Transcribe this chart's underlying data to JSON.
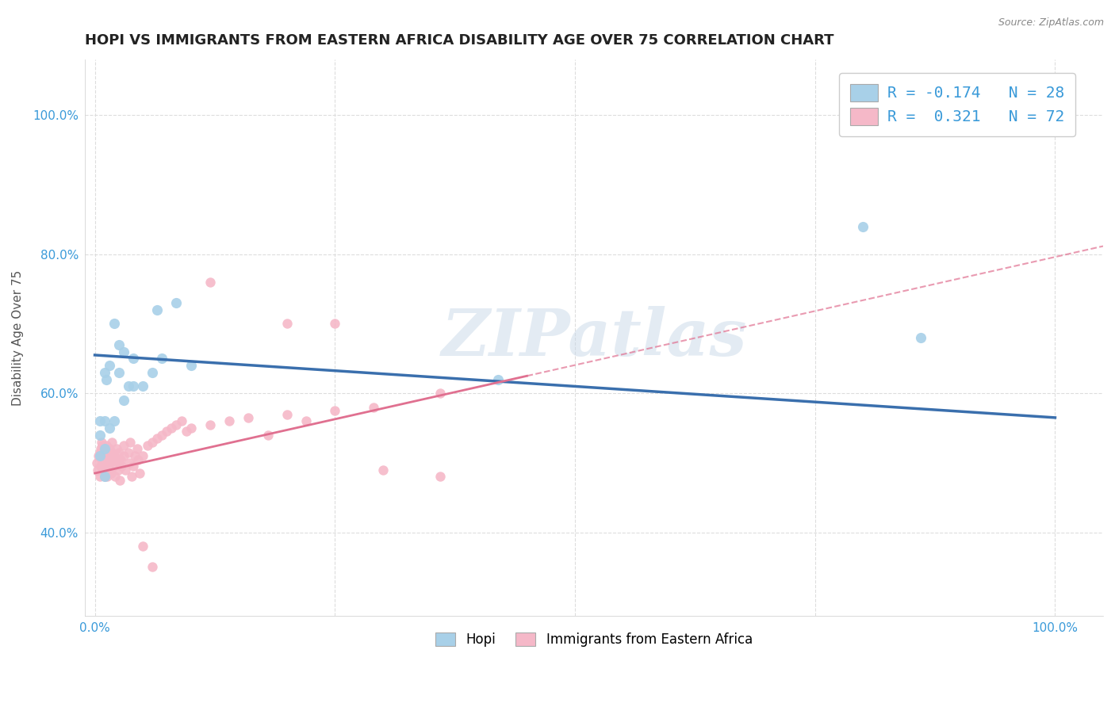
{
  "title": "HOPI VS IMMIGRANTS FROM EASTERN AFRICA DISABILITY AGE OVER 75 CORRELATION CHART",
  "source": "Source: ZipAtlas.com",
  "ylabel": "Disability Age Over 75",
  "watermark": "ZIPatlas",
  "hopi_R": -0.174,
  "hopi_N": 28,
  "eastern_africa_R": 0.321,
  "eastern_africa_N": 72,
  "hopi_color": "#a8d0e8",
  "eastern_africa_color": "#f5b8c8",
  "hopi_line_color": "#3a6fad",
  "eastern_africa_line_color": "#e07090",
  "hopi_line_style": "-",
  "eastern_africa_line_style": "--",
  "background_color": "#ffffff",
  "grid_color": "#dddddd",
  "ytick_color": "#3a9ad9",
  "title_fontsize": 13,
  "label_fontsize": 11,
  "legend_fontsize": 14,
  "hopi_legend_label": "R = -0.174   N = 28",
  "eastern_africa_legend_label": "R =  0.321   N = 72",
  "hopi_bottom_label": "Hopi",
  "ea_bottom_label": "Immigrants from Eastern Africa",
  "hopi_points": {
    "x": [
      0.005,
      0.005,
      0.005,
      0.01,
      0.01,
      0.01,
      0.01,
      0.012,
      0.015,
      0.015,
      0.02,
      0.02,
      0.025,
      0.025,
      0.03,
      0.03,
      0.035,
      0.04,
      0.04,
      0.05,
      0.06,
      0.065,
      0.07,
      0.085,
      0.1,
      0.42,
      0.8,
      0.86
    ],
    "y": [
      0.51,
      0.54,
      0.56,
      0.48,
      0.52,
      0.56,
      0.63,
      0.62,
      0.55,
      0.64,
      0.56,
      0.7,
      0.63,
      0.67,
      0.59,
      0.66,
      0.61,
      0.61,
      0.65,
      0.61,
      0.63,
      0.72,
      0.65,
      0.73,
      0.64,
      0.62,
      0.84,
      0.68
    ]
  },
  "ea_points": {
    "x": [
      0.002,
      0.003,
      0.004,
      0.005,
      0.005,
      0.006,
      0.006,
      0.007,
      0.007,
      0.008,
      0.008,
      0.008,
      0.009,
      0.009,
      0.01,
      0.01,
      0.01,
      0.011,
      0.012,
      0.012,
      0.013,
      0.013,
      0.014,
      0.015,
      0.015,
      0.016,
      0.017,
      0.018,
      0.018,
      0.02,
      0.02,
      0.021,
      0.022,
      0.023,
      0.024,
      0.025,
      0.025,
      0.026,
      0.027,
      0.028,
      0.03,
      0.03,
      0.032,
      0.035,
      0.036,
      0.037,
      0.038,
      0.04,
      0.042,
      0.044,
      0.045,
      0.047,
      0.05,
      0.055,
      0.06,
      0.065,
      0.07,
      0.075,
      0.08,
      0.085,
      0.09,
      0.095,
      0.1,
      0.12,
      0.14,
      0.16,
      0.18,
      0.2,
      0.22,
      0.25,
      0.29,
      0.36
    ],
    "y": [
      0.5,
      0.49,
      0.51,
      0.48,
      0.515,
      0.495,
      0.52,
      0.505,
      0.53,
      0.49,
      0.51,
      0.525,
      0.5,
      0.515,
      0.48,
      0.505,
      0.52,
      0.51,
      0.495,
      0.525,
      0.505,
      0.48,
      0.51,
      0.49,
      0.52,
      0.5,
      0.485,
      0.515,
      0.53,
      0.495,
      0.51,
      0.48,
      0.505,
      0.52,
      0.49,
      0.5,
      0.515,
      0.475,
      0.505,
      0.495,
      0.51,
      0.525,
      0.49,
      0.515,
      0.5,
      0.53,
      0.48,
      0.495,
      0.51,
      0.52,
      0.505,
      0.485,
      0.51,
      0.525,
      0.53,
      0.535,
      0.54,
      0.545,
      0.55,
      0.555,
      0.56,
      0.545,
      0.55,
      0.555,
      0.56,
      0.565,
      0.54,
      0.57,
      0.56,
      0.575,
      0.58,
      0.6
    ]
  },
  "ea_outlier_points": {
    "x": [
      0.12,
      0.2,
      0.25,
      0.05,
      0.06,
      0.3,
      0.36
    ],
    "y": [
      0.76,
      0.7,
      0.7,
      0.38,
      0.35,
      0.49,
      0.48
    ]
  },
  "xlim": [
    -0.01,
    1.05
  ],
  "ylim": [
    0.28,
    1.08
  ],
  "yticks": [
    0.4,
    0.6,
    0.8,
    1.0
  ],
  "ytick_labels": [
    "40.0%",
    "60.0%",
    "80.0%",
    "100.0%"
  ],
  "xtick_labels": [
    "0.0%",
    "",
    "",
    "",
    "100.0%"
  ]
}
